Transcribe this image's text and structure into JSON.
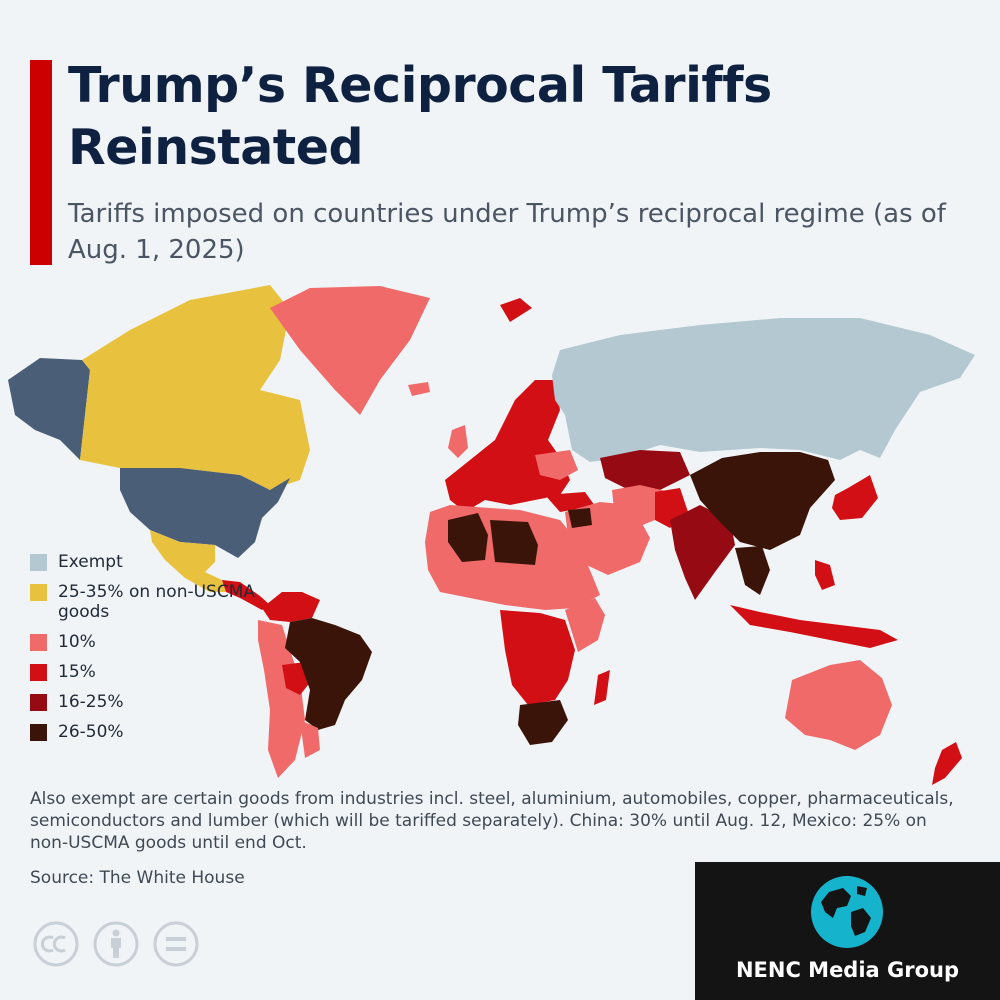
{
  "title": "Trump’s Reciprocal Tariffs Reinstated",
  "subtitle": "Tariffs imposed on countries under Trump’s reciprocal regime (as of Aug. 1, 2025)",
  "legend": [
    {
      "label": "Exempt",
      "color": "#b4c8d2"
    },
    {
      "label": "25-35% on non-USCMA goods",
      "color": "#e8c13e"
    },
    {
      "label": "10%",
      "color": "#f06a6a"
    },
    {
      "label": "15%",
      "color": "#d20f14"
    },
    {
      "label": "16-25%",
      "color": "#960a14"
    },
    {
      "label": "26-50%",
      "color": "#3a1408"
    }
  ],
  "footnote": "Also exempt are certain goods from industries incl. steel, aluminium, automobiles, copper, pharmaceuticals, semiconductors and lumber (which will be tariffed separately). China: 30% until Aug. 12, Mexico: 25% on non-USCMA goods until end Oct.",
  "source": "Source: The White House",
  "brand": {
    "name": "NENC Media Group"
  },
  "license_icons": [
    "cc-icon",
    "attribution-icon",
    "no-derivatives-icon"
  ],
  "colors": {
    "accent": "#cc0000",
    "title": "#0f2140",
    "usa": "#4a5e78",
    "background": "#f1f4f7"
  }
}
